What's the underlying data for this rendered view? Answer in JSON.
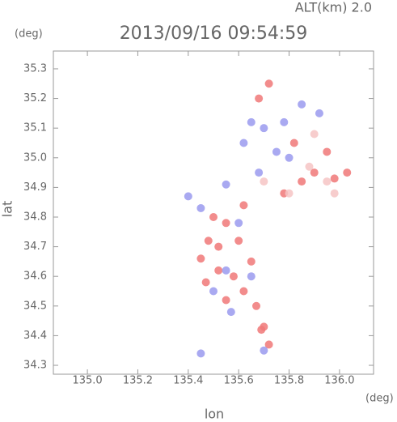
{
  "chart_data": {
    "type": "scatter",
    "title": "2013/09/16 09:54:59",
    "subtitle": "ALT(km) 2.0",
    "x_label": "lon",
    "x_unit": "(deg)",
    "y_label": "lat",
    "y_unit": "(deg)",
    "xlim": [
      134.865,
      136.135
    ],
    "ylim": [
      34.27,
      35.36
    ],
    "xticks": [
      {
        "value": 135.0,
        "label": "135.0"
      },
      135.2,
      135.4,
      135.6,
      135.8,
      {
        "value": 136.0,
        "label": "136.0"
      }
    ],
    "yticks": [
      35.3,
      35.2,
      35.1,
      {
        "value": 35.0,
        "label": "35.0"
      },
      34.9,
      34.8,
      34.7,
      34.6,
      34.5,
      34.4,
      34.3
    ],
    "series": [
      {
        "color": "#f07878",
        "x": [
          135.72,
          135.68,
          135.95,
          135.9,
          135.98,
          135.85,
          135.78,
          135.62,
          135.55,
          135.48,
          135.52,
          135.6,
          135.65,
          135.45,
          135.58,
          135.52,
          135.47,
          135.62,
          135.55,
          135.67,
          135.7,
          135.69,
          135.72,
          135.5,
          135.82,
          136.03
        ],
        "y": [
          35.25,
          35.2,
          35.02,
          34.95,
          34.93,
          34.92,
          34.88,
          34.84,
          34.78,
          34.72,
          34.7,
          34.72,
          34.65,
          34.66,
          34.6,
          34.62,
          34.58,
          34.55,
          34.52,
          34.5,
          34.43,
          34.42,
          34.37,
          34.8,
          35.05,
          34.95
        ]
      },
      {
        "color": "#9a9aee",
        "x": [
          135.78,
          135.7,
          135.85,
          135.65,
          135.75,
          135.8,
          135.68,
          135.55,
          135.4,
          135.45,
          135.6,
          135.55,
          135.5,
          135.65,
          135.57,
          135.45,
          135.7,
          135.92,
          135.62
        ],
        "y": [
          35.12,
          35.1,
          35.18,
          35.12,
          35.02,
          35.0,
          34.95,
          34.91,
          34.87,
          34.83,
          34.78,
          34.62,
          34.55,
          34.6,
          34.48,
          34.34,
          34.35,
          35.15,
          35.05
        ]
      },
      {
        "color": "#f6c4c4",
        "x": [
          135.95,
          135.88,
          135.8,
          135.98,
          135.7,
          135.9
        ],
        "y": [
          34.92,
          34.97,
          34.88,
          34.88,
          34.92,
          35.08
        ]
      }
    ]
  }
}
